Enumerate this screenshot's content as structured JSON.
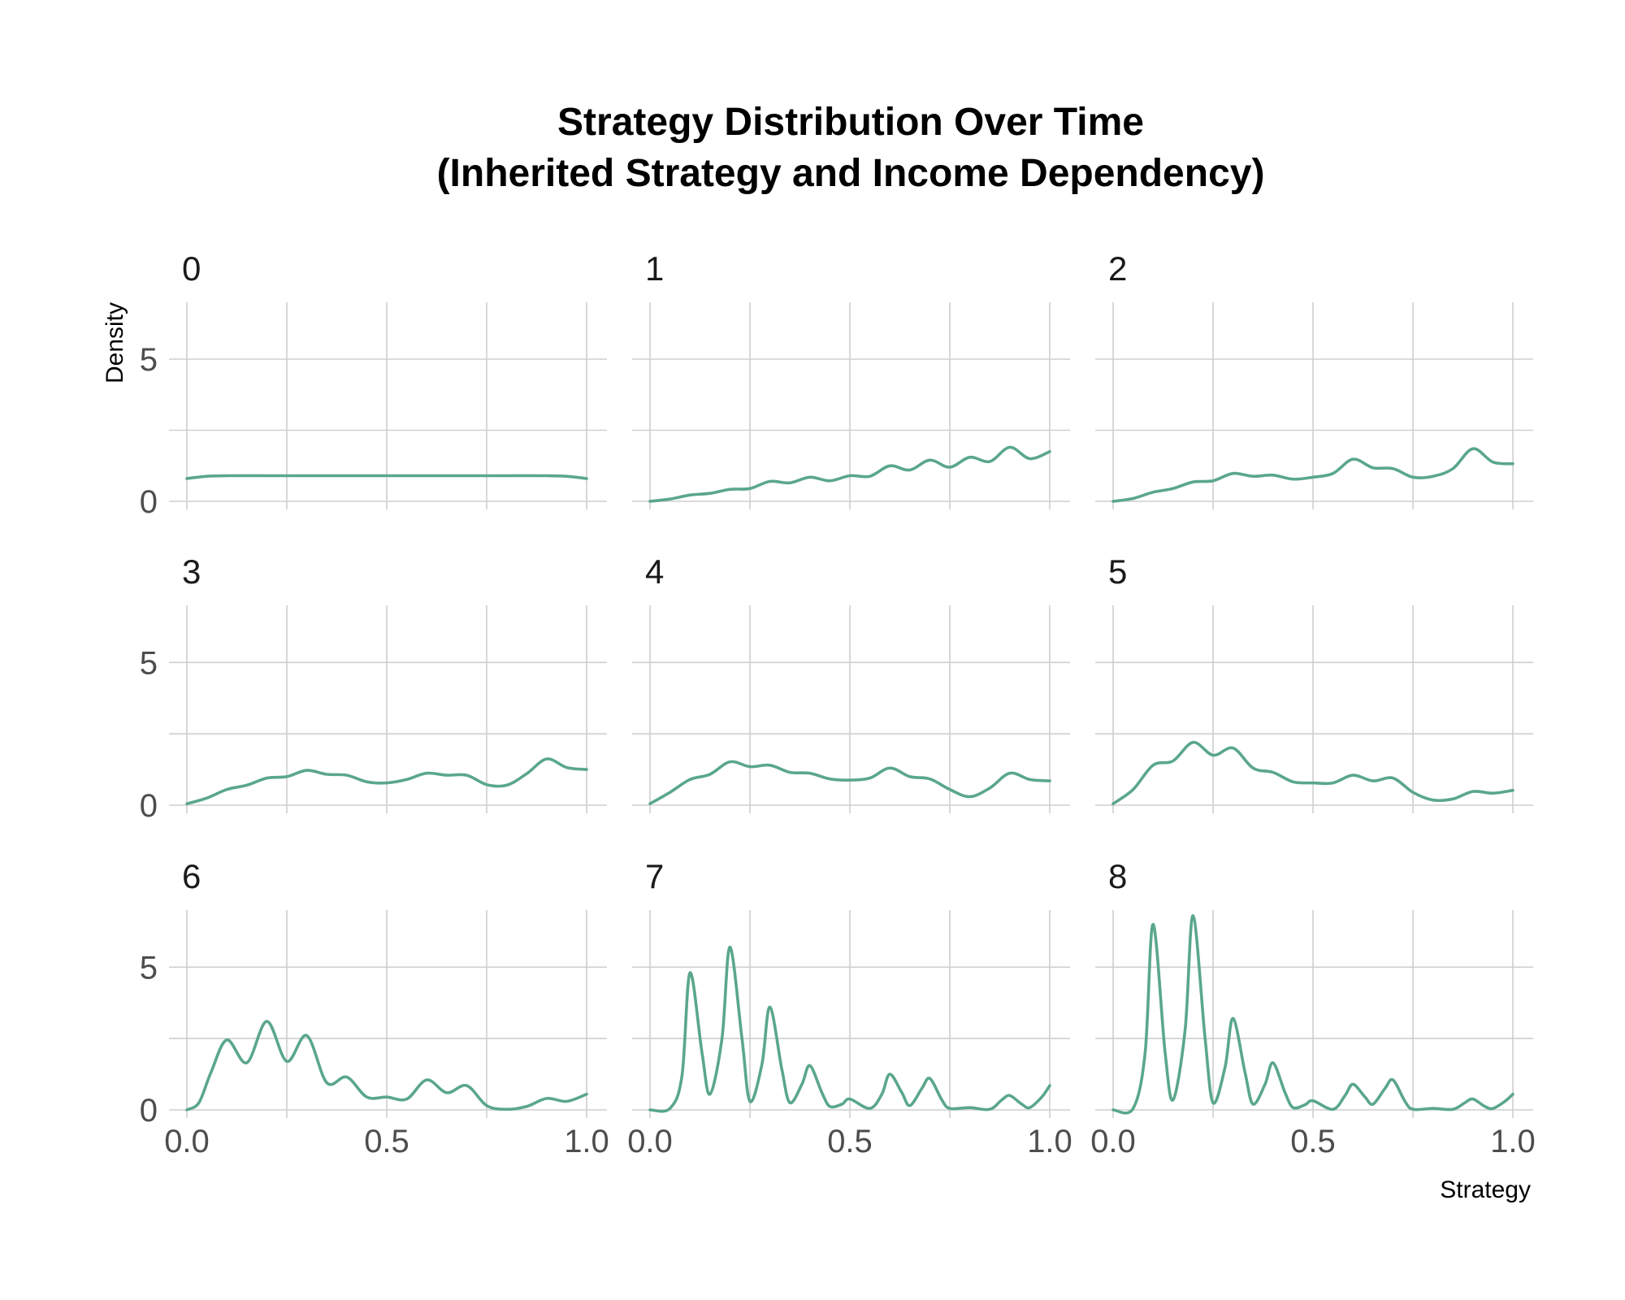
{
  "chart_data": {
    "type": "line",
    "title_lines": [
      "Strategy Distribution Over Time",
      "(Inherited Strategy and Income Dependency)"
    ],
    "xlabel": "Strategy",
    "ylabel": "Density",
    "xlim": [
      0,
      1
    ],
    "ylim": [
      0,
      7
    ],
    "x_ticks": [
      0,
      0.5,
      1
    ],
    "x_tick_labels": [
      "0.0",
      "0.5",
      "1.0"
    ],
    "y_ticks": [
      0,
      5
    ],
    "y_tick_labels": [
      "0",
      "5"
    ],
    "grid": true,
    "line_color": "#5aa78a",
    "facets": [
      {
        "label": "0",
        "points": [
          [
            0,
            0.8
          ],
          [
            0.05,
            0.88
          ],
          [
            0.1,
            0.9
          ],
          [
            0.2,
            0.9
          ],
          [
            0.3,
            0.9
          ],
          [
            0.4,
            0.9
          ],
          [
            0.5,
            0.9
          ],
          [
            0.6,
            0.9
          ],
          [
            0.7,
            0.9
          ],
          [
            0.8,
            0.9
          ],
          [
            0.9,
            0.9
          ],
          [
            0.95,
            0.88
          ],
          [
            1,
            0.8
          ]
        ]
      },
      {
        "label": "1",
        "points": [
          [
            0,
            0
          ],
          [
            0.05,
            0.08
          ],
          [
            0.1,
            0.22
          ],
          [
            0.15,
            0.28
          ],
          [
            0.2,
            0.42
          ],
          [
            0.25,
            0.45
          ],
          [
            0.3,
            0.7
          ],
          [
            0.35,
            0.65
          ],
          [
            0.4,
            0.85
          ],
          [
            0.45,
            0.72
          ],
          [
            0.5,
            0.9
          ],
          [
            0.55,
            0.88
          ],
          [
            0.6,
            1.25
          ],
          [
            0.65,
            1.1
          ],
          [
            0.7,
            1.45
          ],
          [
            0.75,
            1.2
          ],
          [
            0.8,
            1.55
          ],
          [
            0.85,
            1.4
          ],
          [
            0.9,
            1.9
          ],
          [
            0.95,
            1.5
          ],
          [
            1,
            1.75
          ]
        ]
      },
      {
        "label": "2",
        "points": [
          [
            0,
            0
          ],
          [
            0.05,
            0.1
          ],
          [
            0.1,
            0.32
          ],
          [
            0.15,
            0.45
          ],
          [
            0.2,
            0.68
          ],
          [
            0.25,
            0.72
          ],
          [
            0.3,
            0.98
          ],
          [
            0.35,
            0.88
          ],
          [
            0.4,
            0.92
          ],
          [
            0.45,
            0.78
          ],
          [
            0.5,
            0.85
          ],
          [
            0.55,
            0.98
          ],
          [
            0.6,
            1.48
          ],
          [
            0.65,
            1.18
          ],
          [
            0.7,
            1.15
          ],
          [
            0.75,
            0.85
          ],
          [
            0.8,
            0.88
          ],
          [
            0.85,
            1.15
          ],
          [
            0.9,
            1.85
          ],
          [
            0.95,
            1.38
          ],
          [
            1,
            1.32
          ]
        ]
      },
      {
        "label": "3",
        "points": [
          [
            0,
            0.05
          ],
          [
            0.05,
            0.25
          ],
          [
            0.1,
            0.55
          ],
          [
            0.15,
            0.7
          ],
          [
            0.2,
            0.95
          ],
          [
            0.25,
            1.0
          ],
          [
            0.3,
            1.22
          ],
          [
            0.35,
            1.08
          ],
          [
            0.4,
            1.05
          ],
          [
            0.45,
            0.82
          ],
          [
            0.5,
            0.78
          ],
          [
            0.55,
            0.9
          ],
          [
            0.6,
            1.12
          ],
          [
            0.65,
            1.05
          ],
          [
            0.7,
            1.05
          ],
          [
            0.75,
            0.72
          ],
          [
            0.8,
            0.7
          ],
          [
            0.85,
            1.1
          ],
          [
            0.9,
            1.62
          ],
          [
            0.95,
            1.32
          ],
          [
            1,
            1.25
          ]
        ]
      },
      {
        "label": "4",
        "points": [
          [
            0,
            0.05
          ],
          [
            0.05,
            0.45
          ],
          [
            0.1,
            0.9
          ],
          [
            0.15,
            1.08
          ],
          [
            0.2,
            1.52
          ],
          [
            0.25,
            1.35
          ],
          [
            0.3,
            1.4
          ],
          [
            0.35,
            1.15
          ],
          [
            0.4,
            1.12
          ],
          [
            0.45,
            0.92
          ],
          [
            0.5,
            0.88
          ],
          [
            0.55,
            0.95
          ],
          [
            0.6,
            1.3
          ],
          [
            0.65,
            1.0
          ],
          [
            0.7,
            0.92
          ],
          [
            0.75,
            0.55
          ],
          [
            0.8,
            0.3
          ],
          [
            0.85,
            0.6
          ],
          [
            0.9,
            1.12
          ],
          [
            0.95,
            0.9
          ],
          [
            1,
            0.85
          ]
        ]
      },
      {
        "label": "5",
        "points": [
          [
            0,
            0.05
          ],
          [
            0.05,
            0.55
          ],
          [
            0.1,
            1.4
          ],
          [
            0.15,
            1.55
          ],
          [
            0.2,
            2.2
          ],
          [
            0.25,
            1.75
          ],
          [
            0.3,
            2.0
          ],
          [
            0.35,
            1.3
          ],
          [
            0.4,
            1.15
          ],
          [
            0.45,
            0.82
          ],
          [
            0.5,
            0.78
          ],
          [
            0.55,
            0.78
          ],
          [
            0.6,
            1.05
          ],
          [
            0.65,
            0.85
          ],
          [
            0.7,
            0.95
          ],
          [
            0.75,
            0.45
          ],
          [
            0.8,
            0.18
          ],
          [
            0.85,
            0.22
          ],
          [
            0.9,
            0.48
          ],
          [
            0.95,
            0.42
          ],
          [
            1,
            0.52
          ]
        ]
      },
      {
        "label": "6",
        "points": [
          [
            0,
            0
          ],
          [
            0.03,
            0.25
          ],
          [
            0.06,
            1.3
          ],
          [
            0.1,
            2.45
          ],
          [
            0.15,
            1.65
          ],
          [
            0.2,
            3.1
          ],
          [
            0.25,
            1.7
          ],
          [
            0.3,
            2.6
          ],
          [
            0.35,
            0.95
          ],
          [
            0.4,
            1.15
          ],
          [
            0.45,
            0.45
          ],
          [
            0.5,
            0.45
          ],
          [
            0.55,
            0.38
          ],
          [
            0.6,
            1.05
          ],
          [
            0.65,
            0.6
          ],
          [
            0.7,
            0.85
          ],
          [
            0.75,
            0.15
          ],
          [
            0.8,
            0.02
          ],
          [
            0.85,
            0.12
          ],
          [
            0.9,
            0.4
          ],
          [
            0.95,
            0.3
          ],
          [
            1,
            0.55
          ]
        ]
      },
      {
        "label": "7",
        "points": [
          [
            0,
            0
          ],
          [
            0.05,
            0.05
          ],
          [
            0.08,
            1.2
          ],
          [
            0.1,
            4.8
          ],
          [
            0.13,
            2.0
          ],
          [
            0.15,
            0.55
          ],
          [
            0.18,
            2.5
          ],
          [
            0.2,
            5.7
          ],
          [
            0.23,
            2.5
          ],
          [
            0.25,
            0.3
          ],
          [
            0.28,
            1.6
          ],
          [
            0.3,
            3.6
          ],
          [
            0.33,
            1.4
          ],
          [
            0.35,
            0.25
          ],
          [
            0.38,
            0.9
          ],
          [
            0.4,
            1.55
          ],
          [
            0.43,
            0.6
          ],
          [
            0.45,
            0.12
          ],
          [
            0.48,
            0.2
          ],
          [
            0.5,
            0.38
          ],
          [
            0.55,
            0.05
          ],
          [
            0.58,
            0.55
          ],
          [
            0.6,
            1.25
          ],
          [
            0.63,
            0.6
          ],
          [
            0.65,
            0.15
          ],
          [
            0.68,
            0.75
          ],
          [
            0.7,
            1.1
          ],
          [
            0.73,
            0.35
          ],
          [
            0.75,
            0.05
          ],
          [
            0.8,
            0.08
          ],
          [
            0.85,
            0.02
          ],
          [
            0.88,
            0.35
          ],
          [
            0.9,
            0.5
          ],
          [
            0.93,
            0.2
          ],
          [
            0.95,
            0.08
          ],
          [
            0.98,
            0.45
          ],
          [
            1,
            0.85
          ]
        ]
      },
      {
        "label": "8",
        "points": [
          [
            0,
            0
          ],
          [
            0.05,
            0.05
          ],
          [
            0.08,
            2.0
          ],
          [
            0.1,
            6.5
          ],
          [
            0.13,
            2.0
          ],
          [
            0.15,
            0.35
          ],
          [
            0.18,
            2.8
          ],
          [
            0.2,
            6.8
          ],
          [
            0.23,
            2.5
          ],
          [
            0.25,
            0.25
          ],
          [
            0.28,
            1.5
          ],
          [
            0.3,
            3.2
          ],
          [
            0.33,
            1.3
          ],
          [
            0.35,
            0.2
          ],
          [
            0.38,
            0.9
          ],
          [
            0.4,
            1.65
          ],
          [
            0.43,
            0.6
          ],
          [
            0.45,
            0.08
          ],
          [
            0.48,
            0.18
          ],
          [
            0.5,
            0.32
          ],
          [
            0.55,
            0.02
          ],
          [
            0.58,
            0.5
          ],
          [
            0.6,
            0.9
          ],
          [
            0.63,
            0.45
          ],
          [
            0.65,
            0.2
          ],
          [
            0.68,
            0.75
          ],
          [
            0.7,
            1.05
          ],
          [
            0.73,
            0.3
          ],
          [
            0.75,
            0.02
          ],
          [
            0.8,
            0.05
          ],
          [
            0.85,
            0.02
          ],
          [
            0.88,
            0.25
          ],
          [
            0.9,
            0.38
          ],
          [
            0.93,
            0.12
          ],
          [
            0.95,
            0.05
          ],
          [
            0.98,
            0.3
          ],
          [
            1,
            0.55
          ]
        ]
      }
    ]
  }
}
